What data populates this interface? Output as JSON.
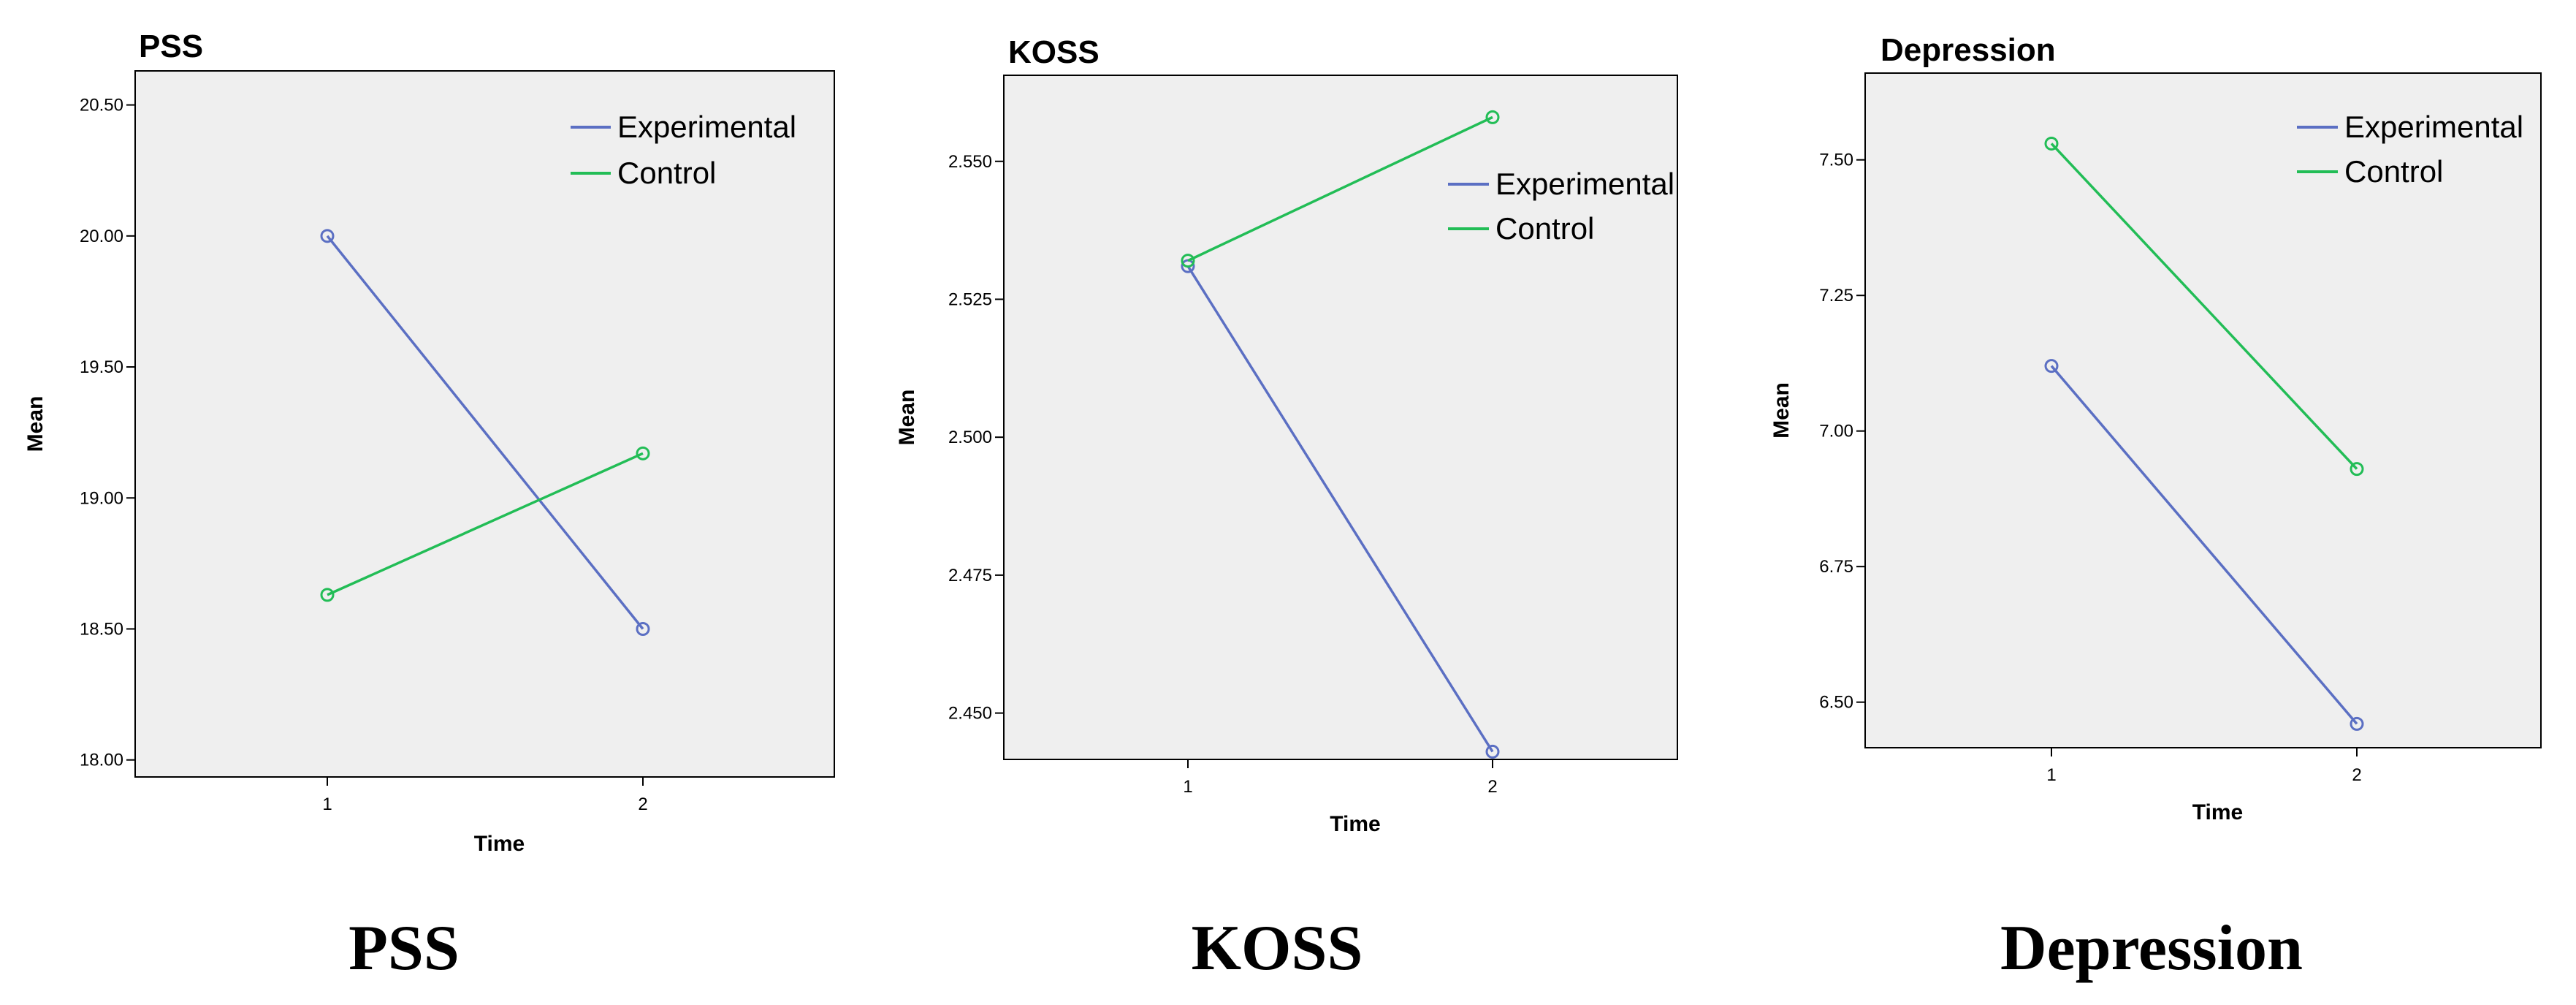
{
  "colors": {
    "experimental": "#5b6fc3",
    "control": "#22bd56",
    "plot_bg": "#efefef"
  },
  "chart_data": [
    {
      "type": "line",
      "title": "PSS",
      "caption": "PSS",
      "xlabel": "Time",
      "ylabel": "Mean",
      "categories": [
        "1",
        "2"
      ],
      "yticks": [
        "18.00",
        "18.50",
        "19.00",
        "19.50",
        "20.00",
        "20.50"
      ],
      "ylim": [
        17.935,
        20.63
      ],
      "series": [
        {
          "name": "Experimental",
          "values": [
            20.0,
            18.5
          ]
        },
        {
          "name": "Control",
          "values": [
            18.63,
            19.17
          ]
        }
      ],
      "legend": "top-right",
      "grid": false
    },
    {
      "type": "line",
      "title": "KOSS",
      "caption": "KOSS",
      "xlabel": "Time",
      "ylabel": "Mean",
      "categories": [
        "1",
        "2"
      ],
      "yticks": [
        "2.450",
        "2.475",
        "2.500",
        "2.525",
        "2.550"
      ],
      "ylim": [
        2.4416,
        2.5656
      ],
      "series": [
        {
          "name": "Experimental",
          "values": [
            2.531,
            2.443
          ]
        },
        {
          "name": "Control",
          "values": [
            2.532,
            2.558
          ]
        }
      ],
      "legend": "top-right",
      "grid": false
    },
    {
      "type": "line",
      "title": "Depression",
      "caption": "Depression",
      "xlabel": "Time",
      "ylabel": "Mean",
      "categories": [
        "1",
        "2"
      ],
      "yticks": [
        "6.50",
        "6.75",
        "7.00",
        "7.25",
        "7.50"
      ],
      "ylim": [
        6.416,
        7.66
      ],
      "series": [
        {
          "name": "Experimental",
          "values": [
            7.12,
            6.46
          ]
        },
        {
          "name": "Control",
          "values": [
            7.53,
            6.93
          ]
        }
      ],
      "legend": "top-right",
      "grid": false
    }
  ]
}
